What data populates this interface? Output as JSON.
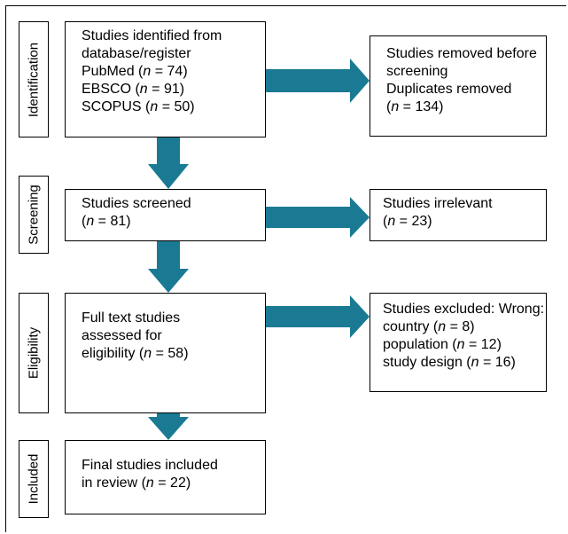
{
  "stages": {
    "identification": "Identification",
    "screening": "Screening",
    "eligibility": "Eligibility",
    "included": "Included"
  },
  "boxes": {
    "identified": {
      "line1": "Studies identified from",
      "line2": "database/register",
      "pubmed": {
        "prefix": "PubMed (",
        "n": "n",
        "suffix": " = 74)"
      },
      "ebsco": {
        "prefix": "EBSCO (",
        "n": "n",
        "suffix": " = 91)"
      },
      "scopus": {
        "prefix": "SCOPUS (",
        "n": "n",
        "suffix": " = 50)"
      }
    },
    "removed": {
      "line1": "Studies removed before",
      "line2": "screening",
      "line3": "Duplicates removed",
      "count": {
        "prefix": "(",
        "n": "n",
        "suffix": " = 134)"
      }
    },
    "screened": {
      "line1": "Studies screened",
      "count": {
        "prefix": "(",
        "n": "n",
        "suffix": " = 81)"
      }
    },
    "irrelevant": {
      "line1": "Studies irrelevant",
      "count": {
        "prefix": "(",
        "n": "n",
        "suffix": " = 23)"
      }
    },
    "fulltext": {
      "line1": "Full text studies",
      "line2": "assessed for",
      "count": {
        "prefix": "eligibility (",
        "n": "n",
        "suffix": " = 58)"
      }
    },
    "excluded": {
      "line1": "Studies excluded: Wrong:",
      "country": {
        "prefix": "country (",
        "n": "n",
        "suffix": " = 8)"
      },
      "population": {
        "prefix": "population (",
        "n": "n",
        "suffix": " = 12)"
      },
      "design": {
        "prefix": "study design (",
        "n": "n",
        "suffix": " = 16)"
      }
    },
    "included": {
      "line1": "Final studies included",
      "count": {
        "prefix": "in review (",
        "n": "n",
        "suffix": " = 22)"
      }
    }
  },
  "colors": {
    "arrow": "#1a7a93"
  }
}
